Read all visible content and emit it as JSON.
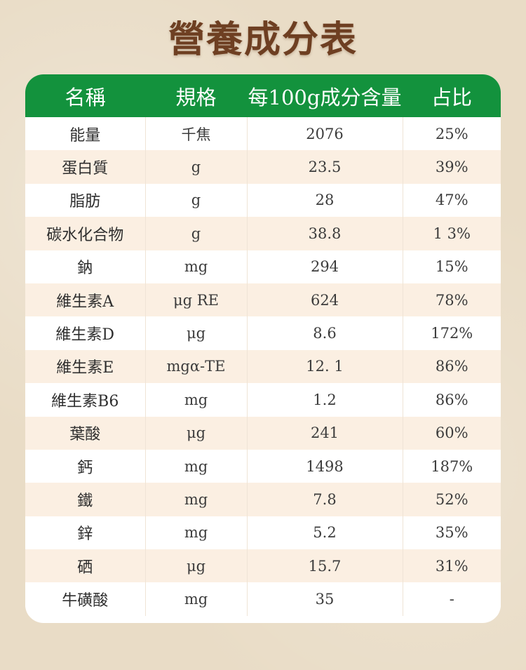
{
  "title": "營養成分表",
  "table": {
    "headers": [
      "名稱",
      "規格",
      "每100g成分含量",
      "占比"
    ],
    "rows": [
      [
        "能量",
        "千焦",
        "2076",
        "25%"
      ],
      [
        "蛋白質",
        "g",
        "23.5",
        "39%"
      ],
      [
        "脂肪",
        "g",
        "28",
        "47%"
      ],
      [
        "碳水化合物",
        "g",
        "38.8",
        "1 3%"
      ],
      [
        "鈉",
        "mg",
        "294",
        "15%"
      ],
      [
        "維生素A",
        "μg RE",
        "624",
        "78%"
      ],
      [
        "維生素D",
        "μg",
        "8.6",
        "172%"
      ],
      [
        "維生素E",
        "mgα-TE",
        "12. 1",
        "86%"
      ],
      [
        "維生素B6",
        "mg",
        "1.2",
        "86%"
      ],
      [
        "葉酸",
        "μg",
        "241",
        "60%"
      ],
      [
        "鈣",
        "mg",
        "1498",
        "187%"
      ],
      [
        "鐵",
        "mg",
        "7.8",
        "52%"
      ],
      [
        "鋅",
        "mg",
        "5.2",
        "35%"
      ],
      [
        "硒",
        "μg",
        "15.7",
        "31%"
      ],
      [
        "牛磺酸",
        "mg",
        "35",
        "-"
      ]
    ]
  },
  "colors": {
    "header_bg": "#13923d",
    "title_color": "#6e3f22",
    "row_alt_bg": "#fbefe2",
    "page_bg": "#e9dcc6"
  }
}
